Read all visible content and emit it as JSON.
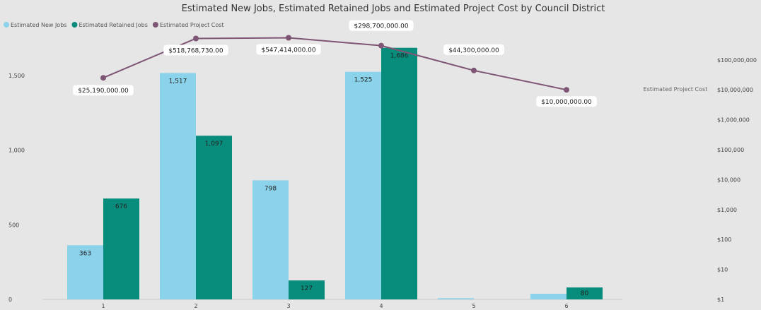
{
  "chart_data": {
    "type": "bar",
    "title": "Estimated New Jobs, Estimated Retained Jobs and Estimated Project Cost by Council District",
    "categories": [
      "1",
      "2",
      "3",
      "4",
      "5",
      "6"
    ],
    "series": [
      {
        "name": "Estimated New Jobs",
        "type": "bar",
        "axis": "left",
        "color": "#8ad3ea",
        "values": [
          363,
          1517,
          798,
          1525,
          8,
          38
        ],
        "labels": [
          "363",
          "1,517",
          "798",
          "1,525",
          "",
          ""
        ]
      },
      {
        "name": "Estimated Retained Jobs",
        "type": "bar",
        "axis": "left",
        "color": "#088c7c",
        "values": [
          676,
          1097,
          127,
          1686,
          0,
          80
        ],
        "labels": [
          "676",
          "1,097",
          "127",
          "1,686",
          "",
          "80"
        ]
      },
      {
        "name": "Estimated Project Cost",
        "type": "line",
        "axis": "right",
        "scale": "log",
        "color": "#7e5574",
        "values": [
          25190000,
          518768730,
          547414000,
          298700000,
          44300000,
          10000000
        ],
        "labels": [
          "$25,190,000.00",
          "$518,768,730.00",
          "$547,414,000.00",
          "$298,700,000.00",
          "$44,300,000.00",
          "$10,000,000.00"
        ]
      }
    ],
    "y_left": {
      "ylim": [
        0,
        1900
      ],
      "ticks": [
        0,
        500,
        1000,
        1500
      ],
      "tick_labels": [
        "0",
        "500",
        "1,000",
        "1,500"
      ]
    },
    "y_right": {
      "title": "Estimated Project Cost",
      "scale": "log",
      "ticks": [
        1,
        10,
        100,
        1000,
        10000,
        100000,
        1000000,
        10000000,
        100000000
      ],
      "tick_labels": [
        "$1",
        "$10",
        "$100",
        "$1,000",
        "$10,000",
        "$100,000",
        "$1,000,000",
        "$10,000,000",
        "$100,000,000"
      ]
    },
    "grid": false,
    "legend": "top-left"
  }
}
